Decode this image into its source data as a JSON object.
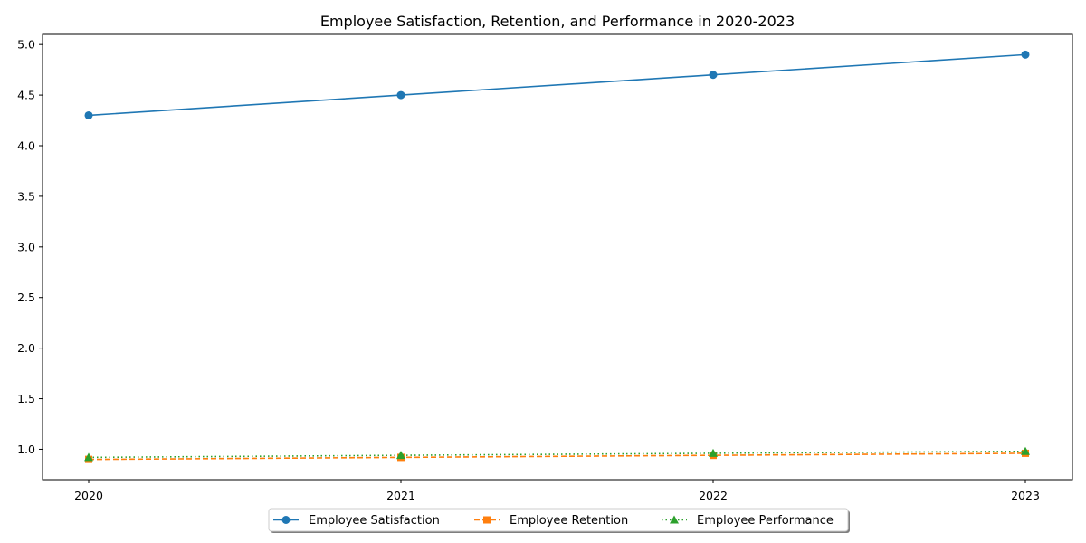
{
  "chart_data": {
    "type": "line",
    "title": "Employee Satisfaction, Retention, and Performance in 2020-2023",
    "xlabel": "",
    "ylabel": "",
    "categories": [
      "2020",
      "2021",
      "2022",
      "2023"
    ],
    "ylim": [
      0.7,
      5.1
    ],
    "yticks": [
      "1.0",
      "1.5",
      "2.0",
      "2.5",
      "3.0",
      "3.5",
      "4.0",
      "4.5",
      "5.0"
    ],
    "grid": false,
    "legend_position": "bottom-center",
    "series": [
      {
        "name": "Employee Satisfaction",
        "values": [
          4.3,
          4.5,
          4.7,
          4.9
        ],
        "color": "#1f77b4",
        "marker": "circle",
        "linestyle": "solid"
      },
      {
        "name": "Employee Retention",
        "values": [
          0.9,
          0.92,
          0.94,
          0.96
        ],
        "color": "#ff7f0e",
        "marker": "square",
        "linestyle": "dashed"
      },
      {
        "name": "Employee Performance",
        "values": [
          0.92,
          0.94,
          0.96,
          0.98
        ],
        "color": "#2ca02c",
        "marker": "triangle",
        "linestyle": "dotted"
      }
    ]
  }
}
